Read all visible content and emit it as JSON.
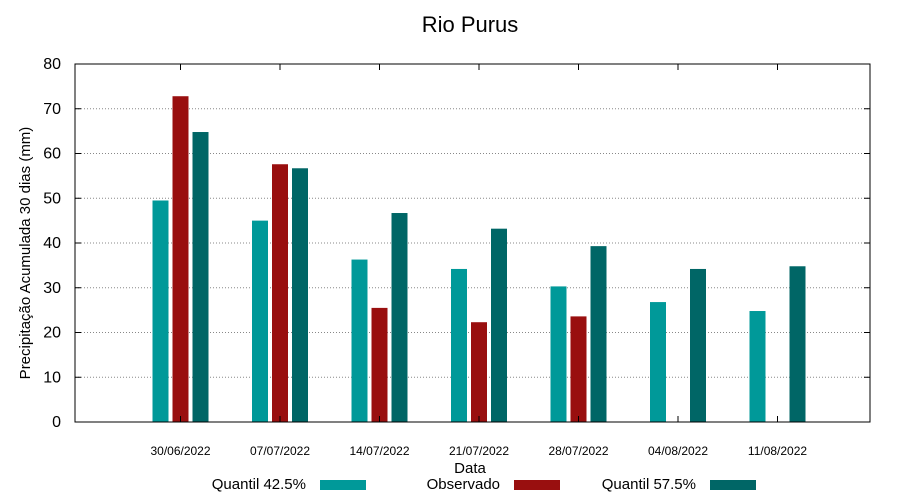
{
  "chart_data": {
    "type": "bar",
    "title": "Rio Purus",
    "xlabel": "Data",
    "ylabel": "Precipitação Acumulada 30 dias (mm)",
    "ylim": [
      0,
      80
    ],
    "yticks": [
      0,
      10,
      20,
      30,
      40,
      50,
      60,
      70,
      80
    ],
    "grid": true,
    "legend_position": "bottom",
    "categories": [
      "30/06/2022",
      "07/07/2022",
      "14/07/2022",
      "21/07/2022",
      "28/07/2022",
      "04/08/2022",
      "11/08/2022"
    ],
    "series": [
      {
        "name": "Quantil 42.5%",
        "color": "#009999",
        "values": [
          49.5,
          45,
          36.3,
          34.2,
          30.3,
          26.8,
          24.8
        ]
      },
      {
        "name": "Observado",
        "color": "#990f0f",
        "values": [
          72.8,
          57.6,
          25.5,
          22.3,
          23.6,
          null,
          null
        ]
      },
      {
        "name": "Quantil 57.5%",
        "color": "#006666",
        "values": [
          64.8,
          56.7,
          46.7,
          43.2,
          39.3,
          34.2,
          34.8
        ]
      }
    ]
  }
}
